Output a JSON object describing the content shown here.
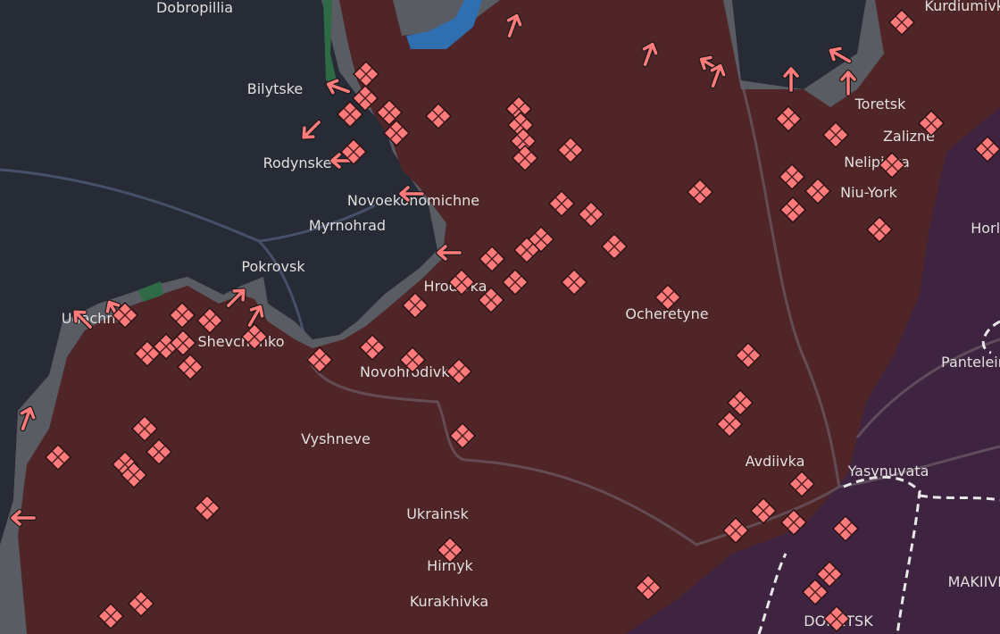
{
  "map": {
    "colors": {
      "background": "#262b35",
      "occupied": "#4f2527",
      "occupied_pre2022": "#3e2440",
      "contested": "#5a5c63",
      "water": "#2f6fb0",
      "forest": "#2d6a45",
      "roads": "#4f5a78",
      "marker": "#ff7b7b"
    },
    "icons": {
      "marker": "clash-diamond-icon",
      "arrow": "advance-arrow-icon"
    },
    "places": [
      {
        "name": "Dobropillia"
      },
      {
        "name": "Kurdiumivka"
      },
      {
        "name": "Bilytske"
      },
      {
        "name": "Rodynske"
      },
      {
        "name": "Toretsk"
      },
      {
        "name": "Zalizne"
      },
      {
        "name": "Nelipivka"
      },
      {
        "name": "Niu-York"
      },
      {
        "name": "Novoekonomichne"
      },
      {
        "name": "Myrnohrad"
      },
      {
        "name": "Pokrovsk"
      },
      {
        "name": "Horlivka"
      },
      {
        "name": "Udachne"
      },
      {
        "name": "Shevchenko"
      },
      {
        "name": "Hrodivka"
      },
      {
        "name": "Ocheretyne"
      },
      {
        "name": "Novohrodivka"
      },
      {
        "name": "Panteleimonivka"
      },
      {
        "name": "Vyshneve"
      },
      {
        "name": "Avdiivka"
      },
      {
        "name": "Yasynuvata"
      },
      {
        "name": "Ukrainsk"
      },
      {
        "name": "Hirnyk"
      },
      {
        "name": "MAKIIVKA"
      },
      {
        "name": "Kurakhivka"
      },
      {
        "name": "DONETSK"
      }
    ]
  }
}
